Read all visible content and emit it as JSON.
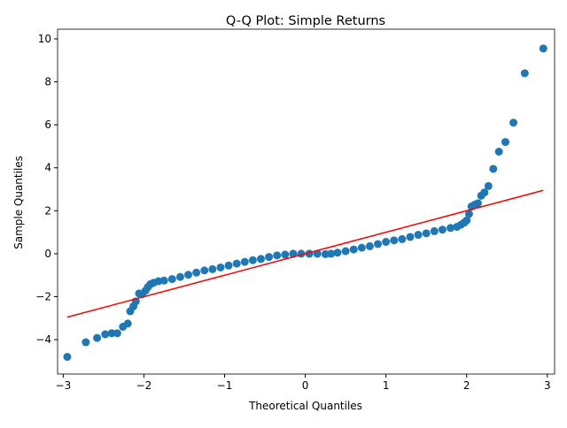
{
  "chart_data": {
    "type": "scatter",
    "title": "Q-Q Plot: Simple Returns",
    "xlabel": "Theoretical Quantiles",
    "ylabel": "Sample Quantiles",
    "xlim": [
      -3.07,
      3.09
    ],
    "ylim": [
      -5.6,
      10.45
    ],
    "xticks": [
      {
        "value": -3,
        "label": "−3"
      },
      {
        "value": -2,
        "label": "−2"
      },
      {
        "value": -1,
        "label": "−1"
      },
      0,
      1,
      2,
      3
    ],
    "yticks": [
      {
        "value": -4,
        "label": "−4"
      },
      {
        "value": -2,
        "label": "−2"
      },
      0,
      2,
      4,
      6,
      8,
      10
    ],
    "points": {
      "color": "#1f77b4",
      "x": [
        -2.95,
        -2.72,
        -2.58,
        -2.48,
        -2.4,
        -2.33,
        -2.26,
        -2.2,
        -2.17,
        -2.13,
        -2.1,
        -2.06,
        -2.02,
        -1.98,
        -1.95,
        -1.92,
        -1.88,
        -1.82,
        -1.75,
        -1.65,
        -1.55,
        -1.45,
        -1.35,
        -1.25,
        -1.15,
        -1.05,
        -0.95,
        -0.85,
        -0.75,
        -0.65,
        -0.55,
        -0.45,
        -0.35,
        -0.25,
        -0.15,
        -0.05,
        0.05,
        0.15,
        0.25,
        0.32,
        0.4,
        0.5,
        0.6,
        0.7,
        0.8,
        0.9,
        1.0,
        1.1,
        1.2,
        1.3,
        1.4,
        1.5,
        1.6,
        1.7,
        1.8,
        1.88,
        1.93,
        1.97,
        2.0,
        2.03,
        2.06,
        2.1,
        2.14,
        2.18,
        2.22,
        2.27,
        2.33,
        2.4,
        2.48,
        2.58,
        2.72,
        2.95
      ],
      "y": [
        -4.8,
        -4.12,
        -3.92,
        -3.75,
        -3.7,
        -3.7,
        -3.4,
        -3.25,
        -2.68,
        -2.45,
        -2.22,
        -1.85,
        -1.88,
        -1.72,
        -1.55,
        -1.42,
        -1.35,
        -1.28,
        -1.25,
        -1.18,
        -1.08,
        -0.98,
        -0.88,
        -0.78,
        -0.72,
        -0.64,
        -0.55,
        -0.46,
        -0.38,
        -0.3,
        -0.24,
        -0.15,
        -0.08,
        -0.04,
        0,
        0,
        0,
        0,
        -0.02,
        0,
        0.05,
        0.12,
        0.2,
        0.28,
        0.35,
        0.45,
        0.55,
        0.62,
        0.68,
        0.78,
        0.88,
        0.95,
        1.05,
        1.12,
        1.2,
        1.25,
        1.35,
        1.45,
        1.55,
        1.85,
        2.2,
        2.28,
        2.35,
        2.7,
        2.85,
        3.15,
        3.95,
        4.75,
        5.2,
        6.1,
        8.4,
        9.55
      ]
    },
    "reference_line": {
      "color": "#ff0000",
      "x": [
        -2.95,
        2.95
      ],
      "y": [
        -2.95,
        2.95
      ]
    }
  }
}
